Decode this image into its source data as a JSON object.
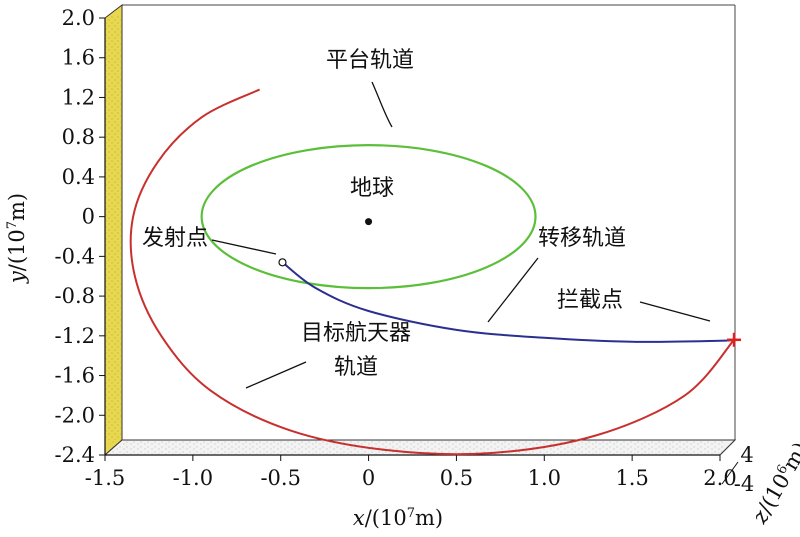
{
  "chart_data": {
    "type": "line",
    "title": "",
    "xlabel": {
      "var": "x",
      "rest": "/(10",
      "exp": "7",
      "unit": "m)"
    },
    "ylabel": {
      "var": "y",
      "rest": "/(10",
      "exp": "7",
      "unit": "m)"
    },
    "zlabel": {
      "var": "z",
      "rest": "/(10",
      "exp": "6",
      "unit": "m)"
    },
    "xlim": [
      -1.5,
      2.0
    ],
    "ylim": [
      -2.4,
      2.0
    ],
    "x_ticks": [
      "-1.5",
      "-1.0",
      "-0.5",
      "0",
      "0.5",
      "1.0",
      "1.5",
      "2.0"
    ],
    "y_ticks": [
      "2.0",
      "1.6",
      "1.2",
      "0.8",
      "0.4",
      "0",
      "-0.4",
      "-0.8",
      "-1.2",
      "-1.6",
      "-2.0",
      "-2.4"
    ],
    "z_ticks": [
      "4",
      "-4"
    ],
    "series": [
      {
        "name": "平台轨道",
        "color": "#5cbf3a",
        "shape": "ellipse",
        "center": [
          0.0,
          0.0
        ],
        "semi_axes": [
          0.95,
          0.72
        ]
      },
      {
        "name": "转移轨道",
        "color": "#2b2f8f",
        "points": [
          [
            -0.49,
            -0.46
          ],
          [
            -0.3,
            -0.72
          ],
          [
            0.0,
            -0.95
          ],
          [
            0.5,
            -1.14
          ],
          [
            1.0,
            -1.22
          ],
          [
            1.5,
            -1.26
          ],
          [
            2.0,
            -1.25
          ],
          [
            2.08,
            -1.24
          ]
        ]
      },
      {
        "name": "目标航天器轨道",
        "color": "#c8302e",
        "points": [
          [
            -0.62,
            1.28
          ],
          [
            -0.95,
            1.0
          ],
          [
            -1.2,
            0.55
          ],
          [
            -1.34,
            0.0
          ],
          [
            -1.33,
            -0.6
          ],
          [
            -1.18,
            -1.2
          ],
          [
            -0.9,
            -1.75
          ],
          [
            -0.45,
            -2.15
          ],
          [
            0.1,
            -2.35
          ],
          [
            0.7,
            -2.38
          ],
          [
            1.3,
            -2.2
          ],
          [
            1.8,
            -1.8
          ],
          [
            2.08,
            -1.24
          ]
        ]
      }
    ],
    "points": [
      {
        "name": "地球",
        "x": 0.0,
        "y": -0.05,
        "marker": "dot"
      },
      {
        "name": "发射点",
        "x": -0.49,
        "y": -0.46,
        "marker": "circle"
      },
      {
        "name": "拦截点",
        "x": 2.08,
        "y": -1.24,
        "marker": "cross",
        "color": "#e02020"
      }
    ],
    "annotations": [
      {
        "text": "平台轨道",
        "lines": [
          "平台轨道"
        ],
        "target_series": "平台轨道"
      },
      {
        "text": "地球",
        "lines": [
          "地球"
        ]
      },
      {
        "text": "发射点",
        "lines": [
          "发射点"
        ],
        "target_point": "发射点"
      },
      {
        "text": "转移轨道",
        "lines": [
          "转移轨道"
        ],
        "target_series": "转移轨道"
      },
      {
        "text": "拦截点",
        "lines": [
          "拦截点"
        ],
        "target_point": "拦截点"
      },
      {
        "text": "目标航天器轨道",
        "lines": [
          "目标航天器",
          "轨道"
        ],
        "target_series": "目标航天器轨道"
      }
    ],
    "wall_color": "#e9d84e",
    "grid": false,
    "legend": "none"
  }
}
